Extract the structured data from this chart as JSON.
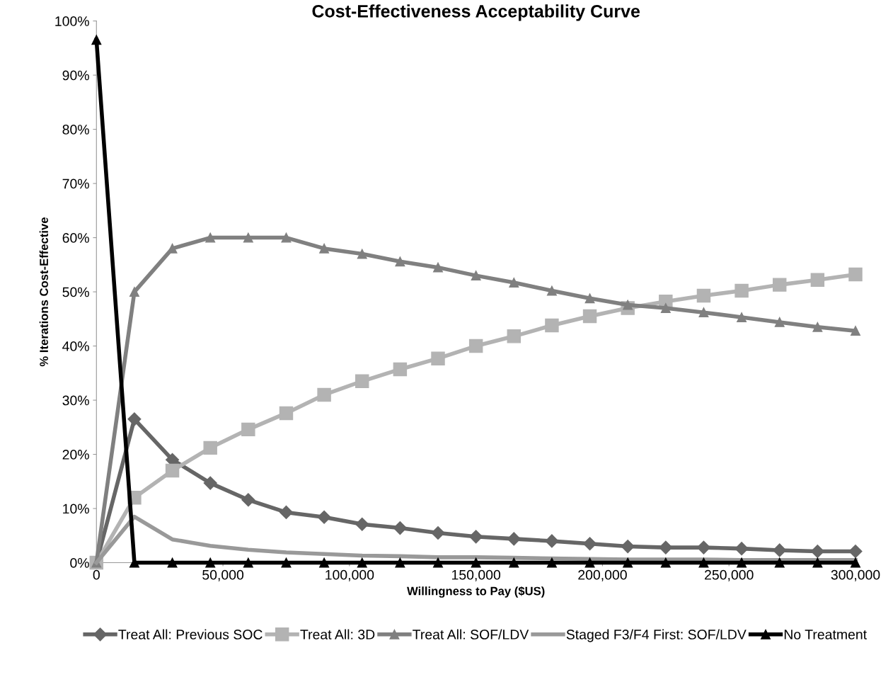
{
  "chart_data": {
    "type": "line",
    "title": "Cost-Effectiveness Acceptability Curve",
    "xlabel": "Willingness to Pay ($US)",
    "ylabel": "% Iterations Cost-Effective",
    "x": [
      0,
      15000,
      30000,
      45000,
      60000,
      75000,
      90000,
      105000,
      120000,
      135000,
      150000,
      165000,
      180000,
      195000,
      210000,
      225000,
      240000,
      255000,
      270000,
      285000,
      300000
    ],
    "series": [
      {
        "name": "Treat All: Previous SOC",
        "color": "#666666",
        "marker": "diamond",
        "values": [
          0,
          26.5,
          19,
          14.7,
          11.6,
          9.3,
          8.4,
          7.1,
          6.4,
          5.5,
          4.8,
          4.4,
          4,
          3.5,
          3,
          2.8,
          2.8,
          2.6,
          2.3,
          2.1,
          2.1
        ]
      },
      {
        "name": "Treat All: 3D",
        "color": "#b3b3b3",
        "marker": "square",
        "values": [
          0,
          12,
          17,
          21.2,
          24.6,
          27.6,
          31,
          33.5,
          35.7,
          37.7,
          40,
          41.8,
          43.8,
          45.5,
          47,
          48.2,
          49.3,
          50.2,
          51.3,
          52.2,
          53.2
        ]
      },
      {
        "name": "Treat All: SOF/LDV",
        "color": "#808080",
        "marker": "triangle",
        "values": [
          0,
          50,
          58,
          60,
          60,
          60,
          58,
          57,
          55.6,
          54.5,
          53,
          51.7,
          50.2,
          48.8,
          47.6,
          47,
          46.2,
          45.3,
          44.4,
          43.5,
          42.8
        ]
      },
      {
        "name": "Staged F3/F4 First: SOF/LDV",
        "color": "#999999",
        "marker": "none",
        "values": [
          0,
          8.5,
          4.3,
          3.1,
          2.4,
          1.9,
          1.6,
          1.3,
          1.2,
          1.0,
          1.0,
          0.9,
          0.8,
          0.7,
          0.6,
          0.6,
          0.6,
          0.5,
          0.5,
          0.5,
          0.5
        ]
      },
      {
        "name": "No Treatment",
        "color": "#000000",
        "marker": "triangle",
        "values": [
          96.5,
          0,
          0,
          0,
          0,
          0,
          0,
          0,
          0,
          0,
          0,
          0,
          0,
          0,
          0,
          0,
          0,
          0,
          0,
          0,
          0
        ]
      }
    ],
    "xlim": [
      0,
      300000
    ],
    "xticks": [
      0,
      {
        "value": 50000,
        "label": "50,000"
      },
      {
        "value": 100000,
        "label": "100,000"
      },
      {
        "value": 150000,
        "label": "150,000"
      },
      {
        "value": 200000,
        "label": "200,000"
      },
      {
        "value": 250000,
        "label": "250,000"
      },
      {
        "value": 300000,
        "label": "300,000"
      }
    ],
    "ylim": [
      0,
      100
    ],
    "yticks": [
      {
        "value": 0,
        "label": "0%"
      },
      {
        "value": 10,
        "label": "10%"
      },
      {
        "value": 20,
        "label": "20%"
      },
      {
        "value": 30,
        "label": "30%"
      },
      {
        "value": 40,
        "label": "40%"
      },
      {
        "value": 50,
        "label": "50%"
      },
      {
        "value": 60,
        "label": "60%"
      },
      {
        "value": 70,
        "label": "70%"
      },
      {
        "value": 80,
        "label": "80%"
      },
      {
        "value": 90,
        "label": "90%"
      },
      {
        "value": 100,
        "label": "100%"
      }
    ],
    "grid": false,
    "legend": "bottom"
  }
}
